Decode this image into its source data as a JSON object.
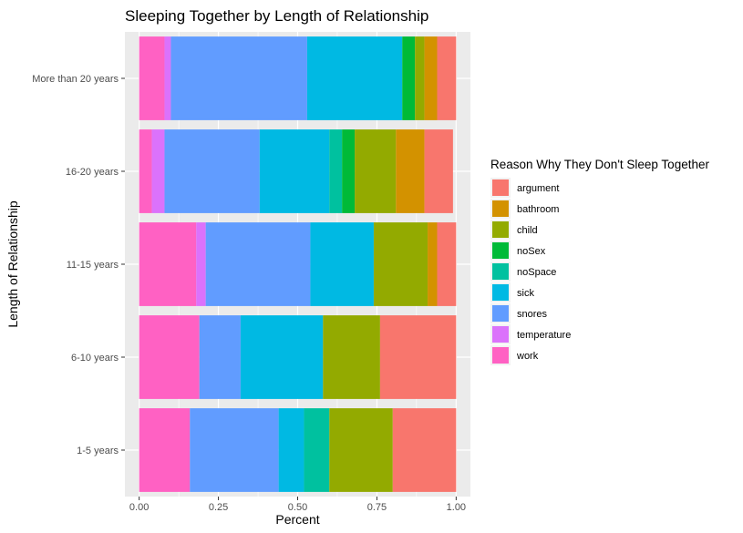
{
  "chart_data": {
    "type": "bar",
    "orientation": "horizontal",
    "stacked": "percent",
    "title": "Sleeping Together by Length of Relationship",
    "xlabel": "Percent",
    "ylabel": "Length of Relationship",
    "xlim": [
      0,
      1
    ],
    "x_ticks": [
      "0.00",
      "0.25",
      "0.50",
      "0.75",
      "1.00"
    ],
    "x_tick_values": [
      0,
      0.25,
      0.5,
      0.75,
      1.0
    ],
    "grid": true,
    "legend_position": "right",
    "categories": [
      "1-5 years",
      "6-10 years",
      "11-15 years",
      "16-20 years",
      "More than 20 years"
    ],
    "legend_title": "Reason Why They Don't Sleep Together",
    "stack_order_from_left": [
      "work",
      "temperature",
      "snores",
      "sick",
      "noSpace",
      "noSex",
      "child",
      "bathroom",
      "argument"
    ],
    "series": [
      {
        "name": "argument",
        "color": "#F8766D",
        "values": [
          0.2,
          0.24,
          0.06,
          0.09,
          0.06
        ]
      },
      {
        "name": "bathroom",
        "color": "#D39200",
        "values": [
          0.0,
          0.0,
          0.03,
          0.09,
          0.04
        ]
      },
      {
        "name": "child",
        "color": "#93AA00",
        "values": [
          0.2,
          0.18,
          0.17,
          0.13,
          0.03
        ]
      },
      {
        "name": "noSex",
        "color": "#00BA38",
        "values": [
          0.0,
          0.0,
          0.0,
          0.04,
          0.04
        ]
      },
      {
        "name": "noSpace",
        "color": "#00C19F",
        "values": [
          0.08,
          0.0,
          0.0,
          0.04,
          0.0
        ]
      },
      {
        "name": "sick",
        "color": "#00B9E3",
        "values": [
          0.08,
          0.26,
          0.2,
          0.22,
          0.3
        ]
      },
      {
        "name": "snores",
        "color": "#619CFF",
        "values": [
          0.28,
          0.13,
          0.33,
          0.3,
          0.43
        ]
      },
      {
        "name": "temperature",
        "color": "#DB72FB",
        "values": [
          0.0,
          0.0,
          0.03,
          0.04,
          0.02
        ]
      },
      {
        "name": "work",
        "color": "#FF61C3",
        "values": [
          0.16,
          0.19,
          0.18,
          0.04,
          0.08
        ]
      }
    ]
  }
}
